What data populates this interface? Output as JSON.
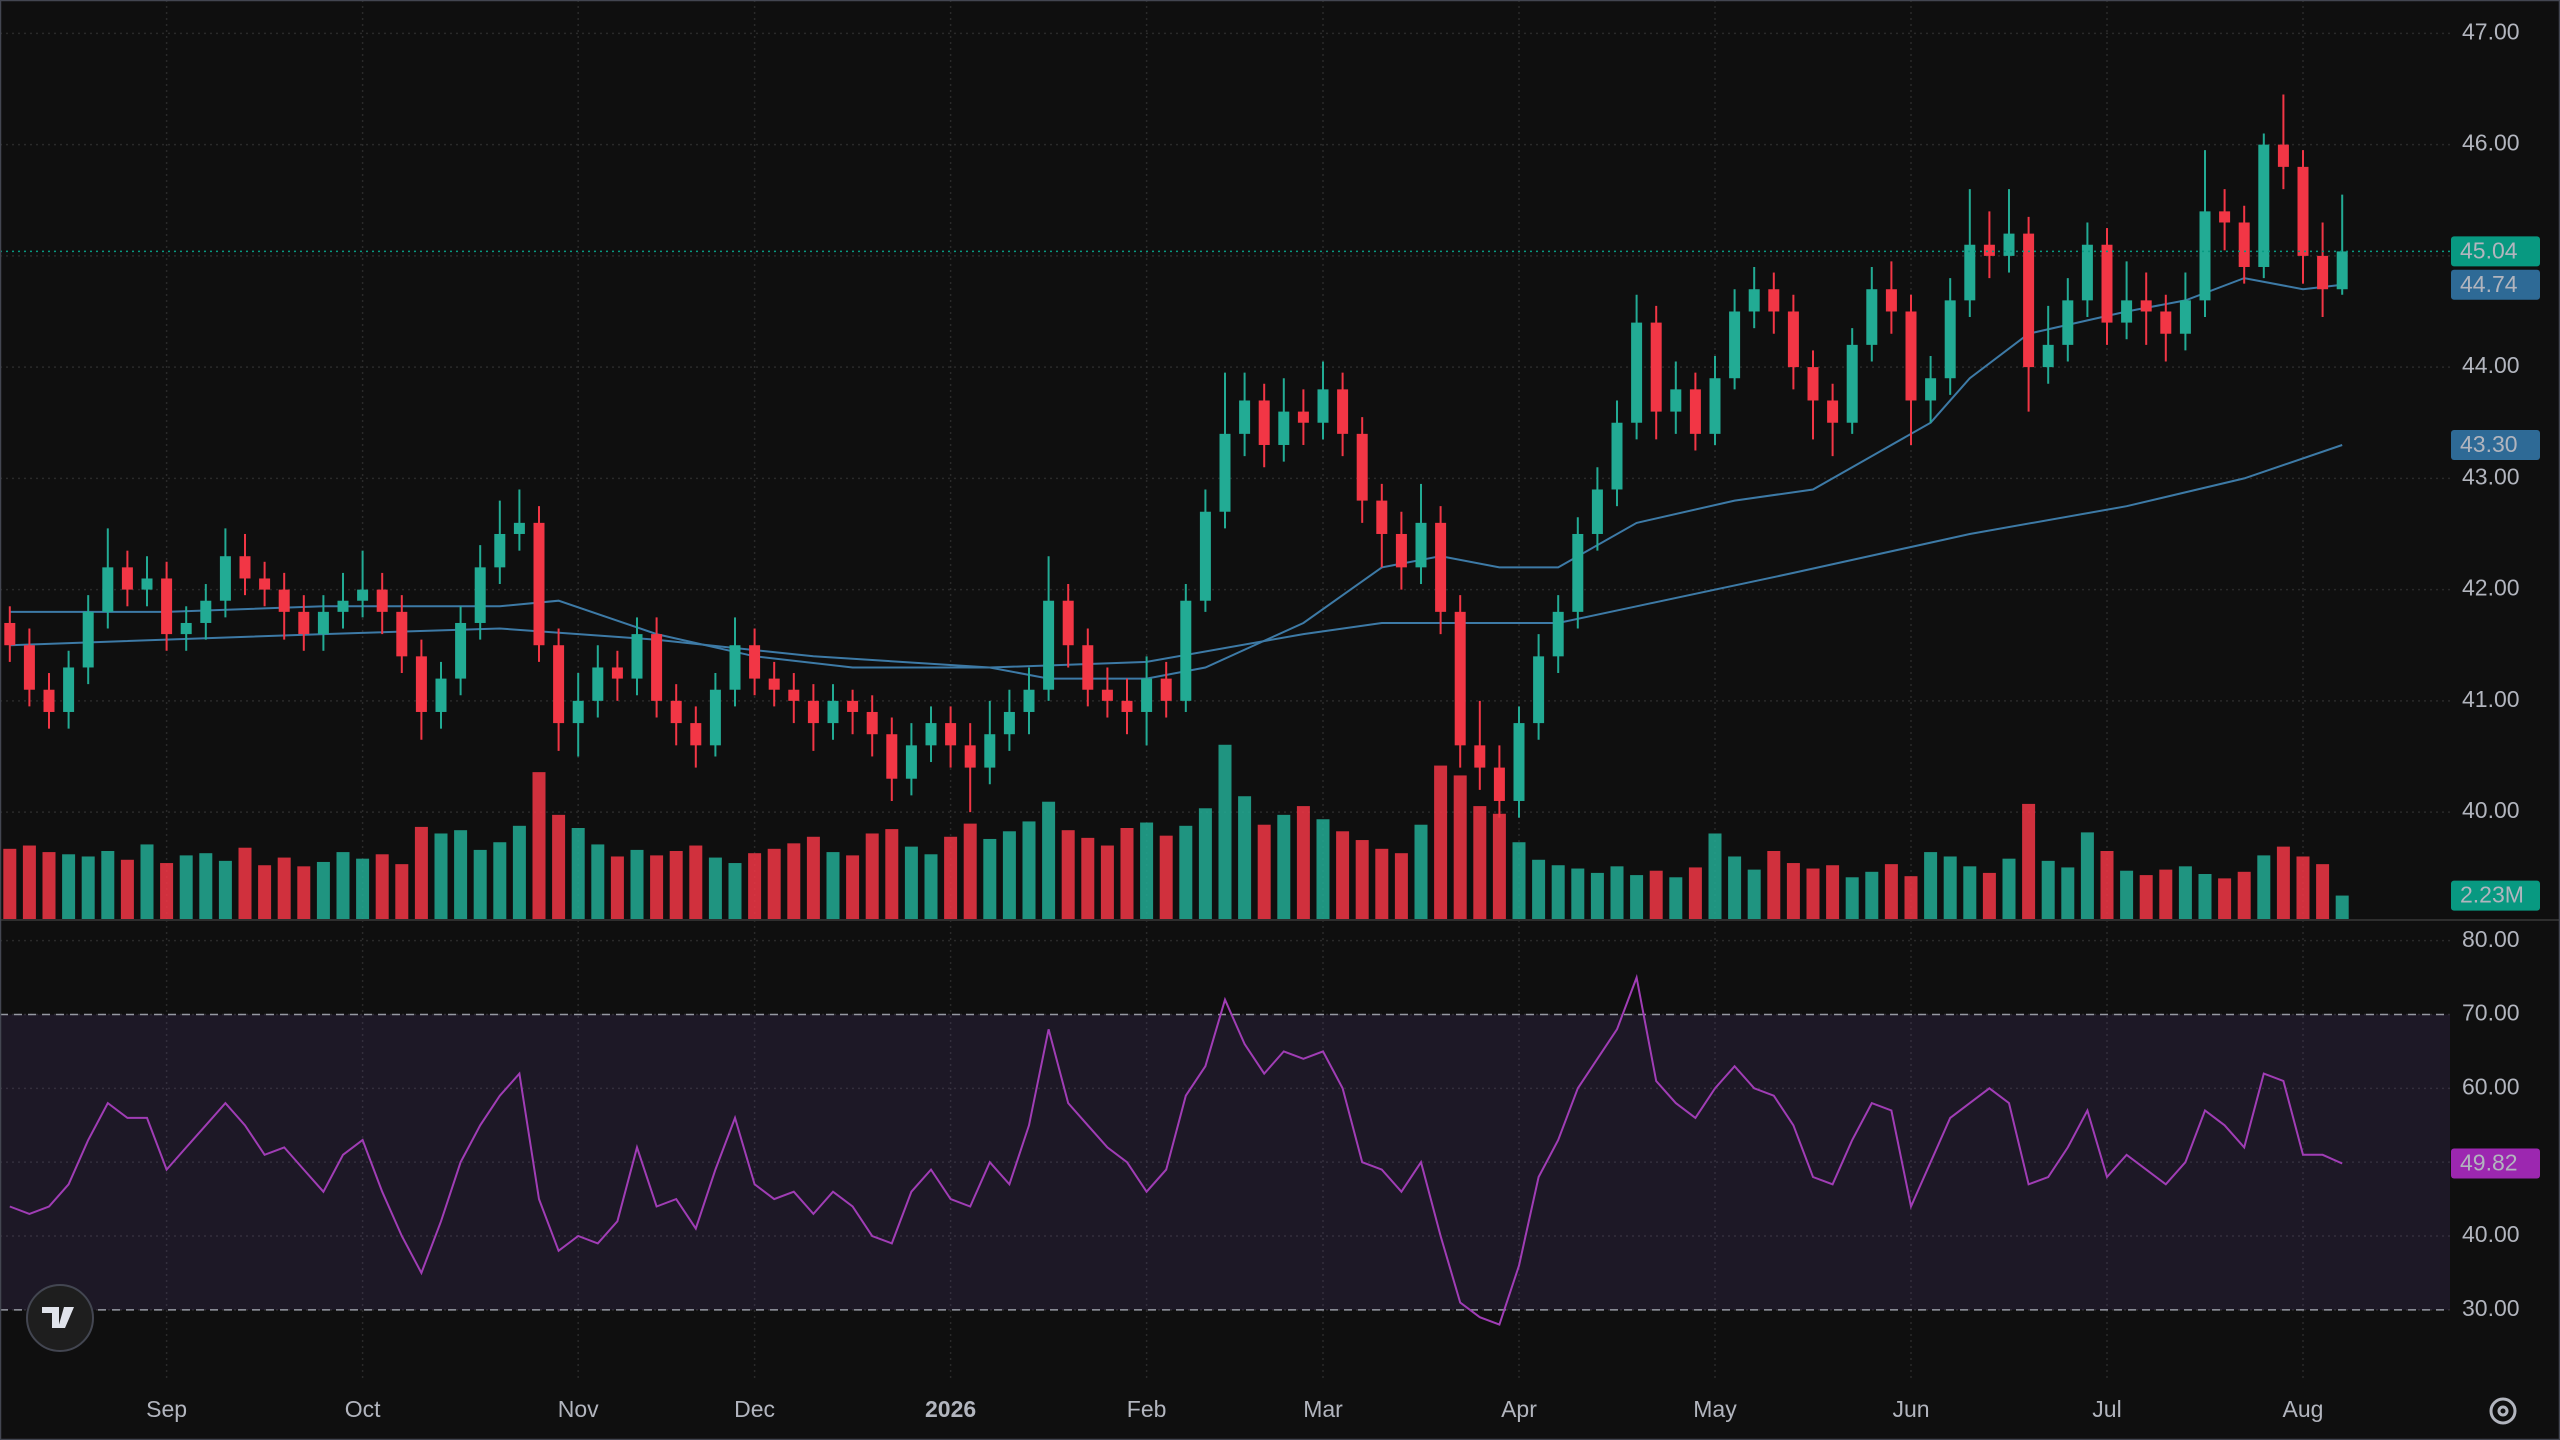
{
  "chart_data": {
    "type": "candlestick",
    "categories": [
      null,
      null,
      null,
      null,
      null,
      null,
      null,
      null,
      null,
      null,
      null,
      null,
      null,
      null,
      null,
      null,
      null,
      null,
      null,
      null,
      null,
      null,
      null,
      null,
      null,
      null,
      null,
      null,
      null,
      null,
      null,
      null,
      null,
      null,
      null,
      null,
      null,
      null,
      null,
      null,
      null,
      null,
      null,
      null,
      null,
      null,
      null,
      null,
      null,
      null,
      null,
      null,
      null,
      null,
      null,
      null,
      null,
      null,
      null,
      null,
      null,
      null,
      null,
      null,
      null,
      null,
      null,
      null,
      null,
      null,
      null,
      null,
      null,
      null,
      null,
      null,
      null,
      null,
      null,
      null,
      null,
      null,
      null,
      null,
      null,
      null,
      null,
      null,
      null,
      null,
      null,
      null,
      null,
      null,
      null,
      null,
      null,
      null,
      null,
      null,
      null,
      null,
      null,
      null,
      null,
      null,
      null,
      null,
      null,
      null,
      null,
      null,
      null,
      null,
      null,
      null,
      null,
      null,
      null,
      null
    ],
    "open": [
      41.7,
      41.5,
      41.1,
      40.9,
      41.3,
      41.8,
      42.2,
      42.0,
      42.1,
      41.6,
      41.7,
      41.9,
      42.3,
      42.1,
      42.0,
      41.8,
      41.6,
      41.8,
      41.9,
      42.0,
      41.8,
      41.4,
      40.9,
      41.2,
      41.7,
      42.2,
      42.5,
      42.6,
      41.5,
      40.8,
      41.0,
      41.3,
      41.2,
      41.6,
      41.0,
      40.8,
      40.6,
      41.1,
      41.5,
      41.2,
      41.1,
      41.0,
      40.8,
      41.0,
      40.9,
      40.7,
      40.3,
      40.6,
      40.8,
      40.6,
      40.4,
      40.7,
      40.9,
      41.1,
      41.9,
      41.5,
      41.1,
      41.0,
      40.9,
      41.2,
      41.0,
      41.9,
      42.7,
      43.4,
      43.7,
      43.3,
      43.6,
      43.5,
      43.8,
      43.4,
      42.8,
      42.5,
      42.2,
      42.6,
      41.8,
      40.6,
      40.4,
      40.1,
      40.8,
      41.4,
      41.8,
      42.5,
      42.9,
      43.5,
      44.4,
      43.6,
      43.8,
      43.4,
      43.9,
      44.5,
      44.7,
      44.5,
      44.0,
      43.7,
      43.5,
      44.2,
      44.7,
      44.5,
      43.7,
      43.9,
      44.6,
      45.1,
      45.0,
      45.2,
      44.0,
      44.2,
      44.6,
      45.1,
      44.4,
      44.6,
      44.5,
      44.3,
      44.6,
      45.4,
      45.3,
      44.9,
      46.0,
      45.8,
      45.0,
      44.7
    ],
    "high": [
      41.85,
      41.65,
      41.25,
      41.45,
      41.95,
      42.55,
      42.35,
      42.3,
      42.25,
      41.85,
      42.05,
      42.55,
      42.5,
      42.25,
      42.15,
      41.95,
      41.95,
      42.15,
      42.35,
      42.15,
      41.95,
      41.55,
      41.35,
      41.85,
      42.4,
      42.8,
      42.9,
      42.75,
      41.65,
      41.25,
      41.5,
      41.45,
      41.75,
      41.75,
      41.15,
      40.95,
      41.25,
      41.75,
      41.65,
      41.35,
      41.25,
      41.15,
      41.15,
      41.1,
      41.05,
      40.85,
      40.8,
      40.95,
      40.95,
      40.8,
      41.0,
      41.1,
      41.3,
      42.3,
      42.05,
      41.65,
      41.3,
      41.2,
      41.4,
      41.35,
      42.05,
      42.9,
      43.95,
      43.95,
      43.85,
      43.9,
      43.8,
      44.05,
      43.95,
      43.55,
      42.95,
      42.7,
      42.95,
      42.75,
      41.95,
      41.0,
      40.6,
      40.95,
      41.6,
      41.95,
      42.65,
      43.1,
      43.7,
      44.65,
      44.55,
      44.05,
      43.95,
      44.1,
      44.7,
      44.9,
      44.85,
      44.65,
      44.15,
      43.85,
      44.35,
      44.9,
      44.95,
      44.65,
      44.1,
      44.8,
      45.6,
      45.4,
      45.6,
      45.35,
      44.55,
      44.8,
      45.3,
      45.25,
      44.95,
      44.85,
      44.65,
      44.85,
      45.95,
      45.6,
      45.45,
      46.1,
      46.45,
      45.95,
      45.3,
      45.55
    ],
    "low": [
      41.35,
      40.95,
      40.75,
      40.75,
      41.15,
      41.65,
      41.85,
      41.85,
      41.45,
      41.45,
      41.55,
      41.75,
      41.95,
      41.85,
      41.55,
      41.45,
      41.45,
      41.65,
      41.75,
      41.6,
      41.25,
      40.65,
      40.75,
      41.05,
      41.55,
      42.05,
      42.35,
      41.35,
      40.55,
      40.5,
      40.85,
      41.0,
      41.05,
      40.85,
      40.6,
      40.4,
      40.5,
      40.95,
      41.05,
      40.95,
      40.8,
      40.55,
      40.65,
      40.7,
      40.5,
      40.1,
      40.15,
      40.45,
      40.4,
      40.0,
      40.25,
      40.55,
      40.7,
      41.0,
      41.3,
      40.95,
      40.85,
      40.7,
      40.6,
      40.85,
      40.9,
      41.8,
      42.55,
      43.2,
      43.1,
      43.15,
      43.3,
      43.35,
      43.2,
      42.6,
      42.2,
      42.0,
      42.05,
      41.6,
      40.4,
      40.2,
      39.95,
      39.95,
      40.65,
      41.25,
      41.65,
      42.35,
      42.75,
      43.35,
      43.35,
      43.4,
      43.25,
      43.3,
      43.8,
      44.35,
      44.3,
      43.8,
      43.35,
      43.2,
      43.4,
      44.05,
      44.3,
      43.3,
      43.5,
      43.75,
      44.45,
      44.8,
      44.85,
      43.6,
      43.85,
      44.05,
      44.45,
      44.2,
      44.25,
      44.2,
      44.05,
      44.15,
      44.45,
      45.05,
      44.75,
      44.8,
      45.6,
      44.75,
      44.45,
      44.65
    ],
    "close": [
      41.5,
      41.1,
      40.9,
      41.3,
      41.8,
      42.2,
      42.0,
      42.1,
      41.6,
      41.7,
      41.9,
      42.3,
      42.1,
      42.0,
      41.8,
      41.6,
      41.8,
      41.9,
      42.0,
      41.8,
      41.4,
      40.9,
      41.2,
      41.7,
      42.2,
      42.5,
      42.6,
      41.5,
      40.8,
      41.0,
      41.3,
      41.2,
      41.6,
      41.0,
      40.8,
      40.6,
      41.1,
      41.5,
      41.2,
      41.1,
      41.0,
      40.8,
      41.0,
      40.9,
      40.7,
      40.3,
      40.6,
      40.8,
      40.6,
      40.4,
      40.7,
      40.9,
      41.1,
      41.9,
      41.5,
      41.1,
      41.0,
      40.9,
      41.2,
      41.0,
      41.9,
      42.7,
      43.4,
      43.7,
      43.3,
      43.6,
      43.5,
      43.8,
      43.4,
      42.8,
      42.5,
      42.2,
      42.6,
      41.8,
      40.6,
      40.4,
      40.1,
      40.8,
      41.4,
      41.8,
      42.5,
      42.9,
      43.5,
      44.4,
      43.6,
      43.8,
      43.4,
      43.9,
      44.5,
      44.7,
      44.5,
      44.0,
      43.7,
      43.5,
      44.2,
      44.7,
      44.5,
      43.7,
      43.9,
      44.6,
      45.1,
      45.0,
      45.2,
      44.0,
      44.2,
      44.6,
      45.1,
      44.4,
      44.6,
      44.5,
      44.3,
      44.6,
      45.4,
      45.3,
      44.9,
      46.0,
      45.8,
      45.0,
      44.7,
      45.04
    ],
    "up_color": "#22ab94",
    "down_color": "#f23645",
    "last_color": "#089981",
    "ylim": [
      39.03,
      47.3
    ],
    "yticks": [
      {
        "value": 40,
        "label": "40.00"
      },
      {
        "value": 41,
        "label": "41.00"
      },
      {
        "value": 42,
        "label": "42.00"
      },
      {
        "value": 43,
        "label": "43.00"
      },
      {
        "value": 44,
        "label": "44.00"
      },
      {
        "value": 45,
        "label": "45.00"
      },
      {
        "value": 46,
        "label": "46.00"
      },
      {
        "value": 47,
        "label": "47.00"
      }
    ],
    "xticks": [
      {
        "value": 8,
        "label": "Sep"
      },
      {
        "value": 18,
        "label": "Oct"
      },
      {
        "value": 29,
        "label": "Nov"
      },
      {
        "value": 38,
        "label": "Dec"
      },
      {
        "value": 48,
        "label": "2026"
      },
      {
        "value": 58,
        "label": "Feb"
      },
      {
        "value": 67,
        "label": "Mar"
      },
      {
        "value": 77,
        "label": "Apr"
      },
      {
        "value": 87,
        "label": "May"
      },
      {
        "value": 97,
        "label": "Jun"
      },
      {
        "value": 107,
        "label": "Jul"
      },
      {
        "value": 117,
        "label": "Aug"
      }
    ],
    "grid": true,
    "moving_averages": [
      {
        "color": "#3d7aa6",
        "x": [
          0,
          8,
          16,
          25,
          28,
          33,
          38,
          43,
          50,
          53,
          58,
          61,
          66,
          70,
          73,
          76,
          79,
          83,
          88,
          92,
          95,
          98,
          100,
          103,
          108,
          111,
          114,
          117,
          119
        ],
        "values": [
          41.8,
          41.8,
          41.85,
          41.85,
          41.9,
          41.6,
          41.4,
          41.3,
          41.3,
          41.2,
          41.2,
          41.3,
          41.7,
          42.2,
          42.3,
          42.2,
          42.2,
          42.6,
          42.8,
          42.9,
          43.2,
          43.5,
          43.9,
          44.3,
          44.5,
          44.6,
          44.8,
          44.7,
          44.74
        ],
        "last_label": "44.74"
      },
      {
        "color": "#3d7aa6",
        "x": [
          0,
          16,
          25,
          33,
          41,
          50,
          58,
          66,
          70,
          74,
          79,
          83,
          91,
          100,
          108,
          114,
          119
        ],
        "values": [
          41.5,
          41.6,
          41.65,
          41.55,
          41.4,
          41.3,
          41.35,
          41.6,
          41.7,
          41.7,
          41.7,
          41.85,
          42.15,
          42.5,
          42.75,
          43.0,
          43.3
        ],
        "last_label": "43.30"
      }
    ],
    "volume": {
      "ylim": [
        0,
        84
      ],
      "last_label": "2.23M",
      "values": [
        6.5,
        6.8,
        6.2,
        6.0,
        5.8,
        6.3,
        5.5,
        6.9,
        5.2,
        5.9,
        6.1,
        5.4,
        6.6,
        5.0,
        5.7,
        4.9,
        5.3,
        6.2,
        5.6,
        6.0,
        5.1,
        8.5,
        7.9,
        8.2,
        6.4,
        7.1,
        8.6,
        13.5,
        9.6,
        8.4,
        6.9,
        5.8,
        6.4,
        5.9,
        6.3,
        6.8,
        5.7,
        5.2,
        6.1,
        6.5,
        7.0,
        7.6,
        6.2,
        5.9,
        7.9,
        8.3,
        6.7,
        6.0,
        7.6,
        8.8,
        7.4,
        8.1,
        9.0,
        10.8,
        8.2,
        7.5,
        6.8,
        8.4,
        8.9,
        7.7,
        8.6,
        10.2,
        16.0,
        11.3,
        8.7,
        9.6,
        10.4,
        9.2,
        8.1,
        7.3,
        6.5,
        6.1,
        8.7,
        14.1,
        13.2,
        10.4,
        9.7,
        7.1,
        5.5,
        5.0,
        4.7,
        4.3,
        4.9,
        4.1,
        4.5,
        3.9,
        4.8,
        7.9,
        5.8,
        4.6,
        6.3,
        5.2,
        4.7,
        5.0,
        3.9,
        4.4,
        5.1,
        4.0,
        6.2,
        5.8,
        4.9,
        4.3,
        5.6,
        10.6,
        5.4,
        4.8,
        8.0,
        6.3,
        4.5,
        4.1,
        4.6,
        4.9,
        4.2,
        3.8,
        4.4,
        5.9,
        6.7,
        5.8,
        5.1,
        2.23
      ]
    },
    "rsi": {
      "color": "#a03db5",
      "label_color": "#9c27b0",
      "ylim": [
        20.5,
        82.8
      ],
      "bands": [
        30,
        70
      ],
      "yticks": [
        {
          "value": 30,
          "label": "30.00"
        },
        {
          "value": 40,
          "label": "40.00"
        },
        {
          "value": 50,
          "label": "50.00"
        },
        {
          "value": 60,
          "label": "60.00"
        },
        {
          "value": 70,
          "label": "70.00"
        },
        {
          "value": 80,
          "label": "80.00"
        }
      ],
      "values": [
        44,
        43,
        44,
        47,
        53,
        58,
        56,
        56,
        49,
        52,
        55,
        58,
        55,
        51,
        52,
        49,
        46,
        51,
        53,
        46,
        40,
        35,
        42,
        50,
        55,
        59,
        62,
        45,
        38,
        40,
        39,
        42,
        52,
        44,
        45,
        41,
        49,
        56,
        47,
        45,
        46,
        43,
        46,
        44,
        40,
        39,
        46,
        49,
        45,
        44,
        50,
        47,
        55,
        68,
        58,
        55,
        52,
        50,
        46,
        49,
        59,
        63,
        72,
        66,
        62,
        65,
        64,
        65,
        60,
        50,
        49,
        46,
        50,
        40,
        31,
        29,
        28,
        36,
        48,
        53,
        60,
        64,
        68,
        75,
        61,
        58,
        56,
        60,
        63,
        60,
        59,
        55,
        48,
        47,
        53,
        58,
        57,
        44,
        50,
        56,
        58,
        60,
        58,
        47,
        48,
        52,
        57,
        48,
        51,
        49,
        47,
        50,
        57,
        55,
        52,
        62,
        61,
        51,
        51,
        49.82
      ]
    }
  }
}
